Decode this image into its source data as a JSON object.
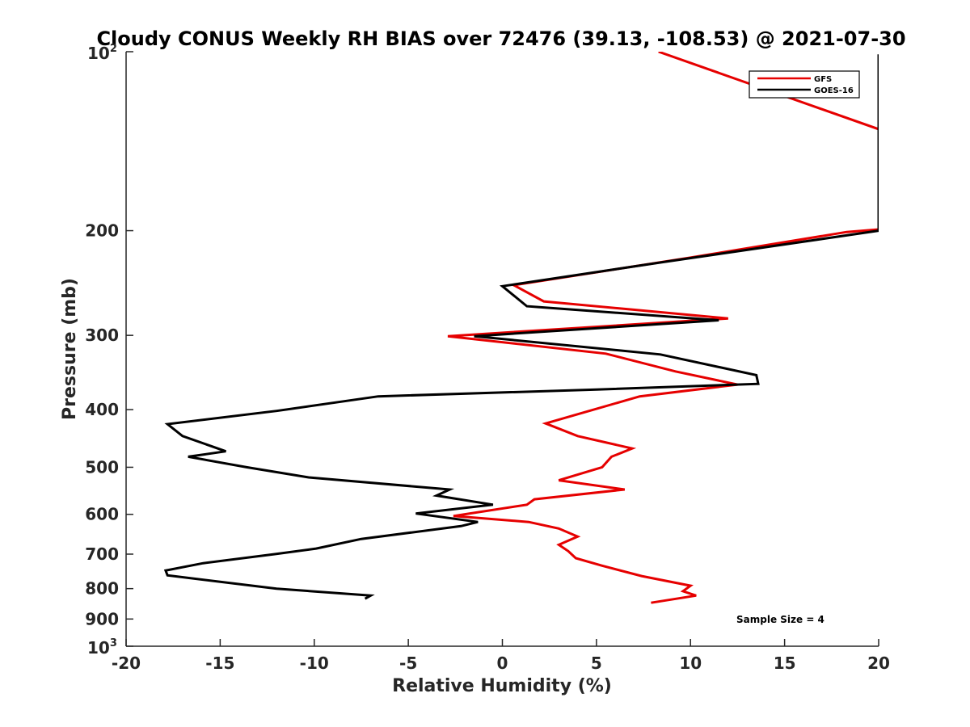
{
  "chart_data": {
    "type": "line",
    "title": "Cloudy CONUS Weekly RH BIAS over 72476 (39.13, -108.53) @ 2021-07-30",
    "xlabel": "Relative Humidity (%)",
    "ylabel": "Pressure (mb)",
    "xlim": [
      -20,
      20
    ],
    "ylim": [
      100,
      1000
    ],
    "yscale": "log",
    "y_reversed": true,
    "grid": false,
    "legend_position": "top-right",
    "x_ticks": [
      "-20",
      "-15",
      "-10",
      "-5",
      "0",
      "5",
      "10",
      "15",
      "20"
    ],
    "y_ticks": [
      {
        "value": 100,
        "base": "10",
        "exp": "2"
      },
      {
        "value": 200,
        "label": "200"
      },
      {
        "value": 300,
        "label": "300"
      },
      {
        "value": 400,
        "label": "400"
      },
      {
        "value": 500,
        "label": "500"
      },
      {
        "value": 600,
        "label": "600"
      },
      {
        "value": 700,
        "label": "700"
      },
      {
        "value": 800,
        "label": "800"
      },
      {
        "value": 900,
        "label": "900"
      },
      {
        "value": 1000,
        "base": "10",
        "exp": "3"
      }
    ],
    "series": [
      {
        "name": "GFS",
        "color": "#e60000",
        "points": [
          [
            8.3,
            100
          ],
          [
            20,
            135
          ],
          [
            20,
            199
          ],
          [
            18.3,
            201
          ],
          [
            10,
            222
          ],
          [
            0.6,
            247
          ],
          [
            2.2,
            263
          ],
          [
            12,
            281
          ],
          [
            -2.9,
            301
          ],
          [
            5.5,
            322
          ],
          [
            9.2,
            345
          ],
          [
            12.5,
            363
          ],
          [
            7.3,
            380
          ],
          [
            2.3,
            422
          ],
          [
            4,
            443
          ],
          [
            6.9,
            465
          ],
          [
            5.8,
            480
          ],
          [
            5.3,
            500
          ],
          [
            3,
            526
          ],
          [
            6.5,
            545
          ],
          [
            1.7,
            566
          ],
          [
            1.3,
            578
          ],
          [
            -2.6,
            604
          ],
          [
            1.4,
            618
          ],
          [
            3,
            634
          ],
          [
            4,
            654
          ],
          [
            3,
            675
          ],
          [
            3.5,
            692
          ],
          [
            3.9,
            711
          ],
          [
            5.3,
            732
          ],
          [
            7.4,
            762
          ],
          [
            10,
            791
          ],
          [
            9.6,
            808
          ],
          [
            10.3,
            822
          ],
          [
            7.9,
            845
          ]
        ]
      },
      {
        "name": "GOES-16",
        "color": "#000000",
        "points": [
          [
            20,
            101
          ],
          [
            20,
            109
          ],
          [
            20,
            200
          ],
          [
            8.5,
            226
          ],
          [
            0,
            248
          ],
          [
            1.3,
            268
          ],
          [
            11.5,
            283
          ],
          [
            -1.5,
            301
          ],
          [
            8.4,
            323
          ],
          [
            13.5,
            350
          ],
          [
            13.6,
            362
          ],
          [
            5,
            370
          ],
          [
            -6.6,
            380
          ],
          [
            -12,
            402
          ],
          [
            -17.8,
            423
          ],
          [
            -17,
            443
          ],
          [
            -14.7,
            470
          ],
          [
            -16.7,
            480
          ],
          [
            -13.6,
            500
          ],
          [
            -10.3,
            520
          ],
          [
            -2.8,
            545
          ],
          [
            -3.5,
            558
          ],
          [
            -0.5,
            578
          ],
          [
            -4.6,
            598
          ],
          [
            -1.3,
            618
          ],
          [
            -2.2,
            628
          ],
          [
            -7.5,
            660
          ],
          [
            -9.9,
            685
          ],
          [
            -12.1,
            700
          ],
          [
            -15.9,
            725
          ],
          [
            -17.9,
            746
          ],
          [
            -17.8,
            760
          ],
          [
            -12,
            800
          ],
          [
            -7,
            822
          ],
          [
            -7.3,
            832
          ]
        ]
      }
    ],
    "annotations": [
      "Sample Size = 4"
    ]
  }
}
